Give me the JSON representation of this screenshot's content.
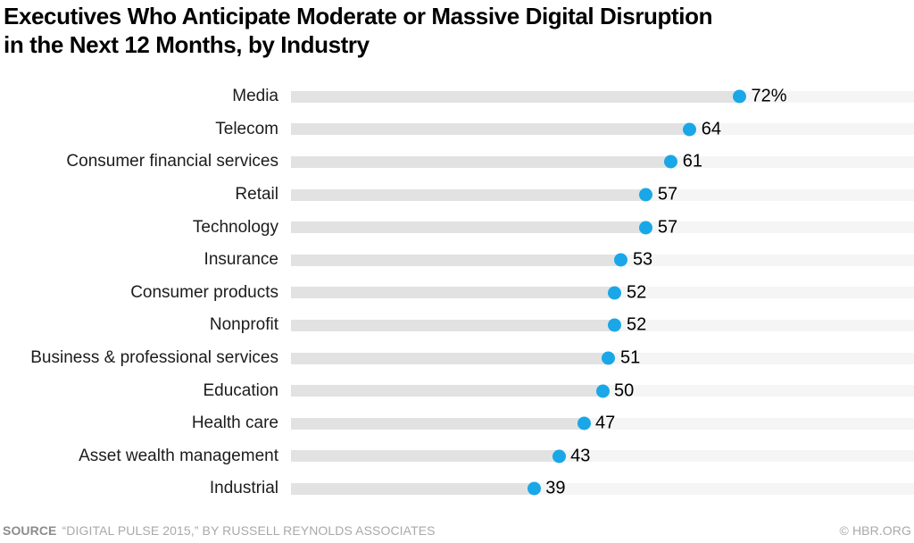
{
  "title": {
    "line1": "Executives Who Anticipate Moderate or Massive Digital Disruption",
    "line2": "in the Next 12 Months, by Industry"
  },
  "chart_data": {
    "type": "bar",
    "orientation": "horizontal",
    "title": "Executives Who Anticipate Moderate or Massive Digital Disruption in the Next 12 Months, by Industry",
    "categories": [
      "Media",
      "Telecom",
      "Consumer financial services",
      "Retail",
      "Technology",
      "Insurance",
      "Consumer products",
      "Nonprofit",
      "Business & professional services",
      "Education",
      "Health care",
      "Asset wealth management",
      "Industrial"
    ],
    "values": [
      72,
      64,
      61,
      57,
      57,
      53,
      52,
      52,
      51,
      50,
      47,
      43,
      39
    ],
    "value_labels": [
      "72%",
      "64",
      "61",
      "57",
      "57",
      "53",
      "52",
      "52",
      "51",
      "50",
      "47",
      "43",
      "39"
    ],
    "unit": "%",
    "xlim": [
      0,
      100
    ],
    "grid": false,
    "legend": false,
    "colors": {
      "dot": "#1AA7E8",
      "bar_fill": "#E2E2E2",
      "track": "#F5F5F5",
      "value_text": "#000000",
      "category_text": "#1C1C1C"
    }
  },
  "footer": {
    "source_label": "SOURCE",
    "source_text": "“DIGITAL PULSE 2015,” BY RUSSELL REYNOLDS ASSOCIATES",
    "credit": "© HBR.ORG"
  }
}
